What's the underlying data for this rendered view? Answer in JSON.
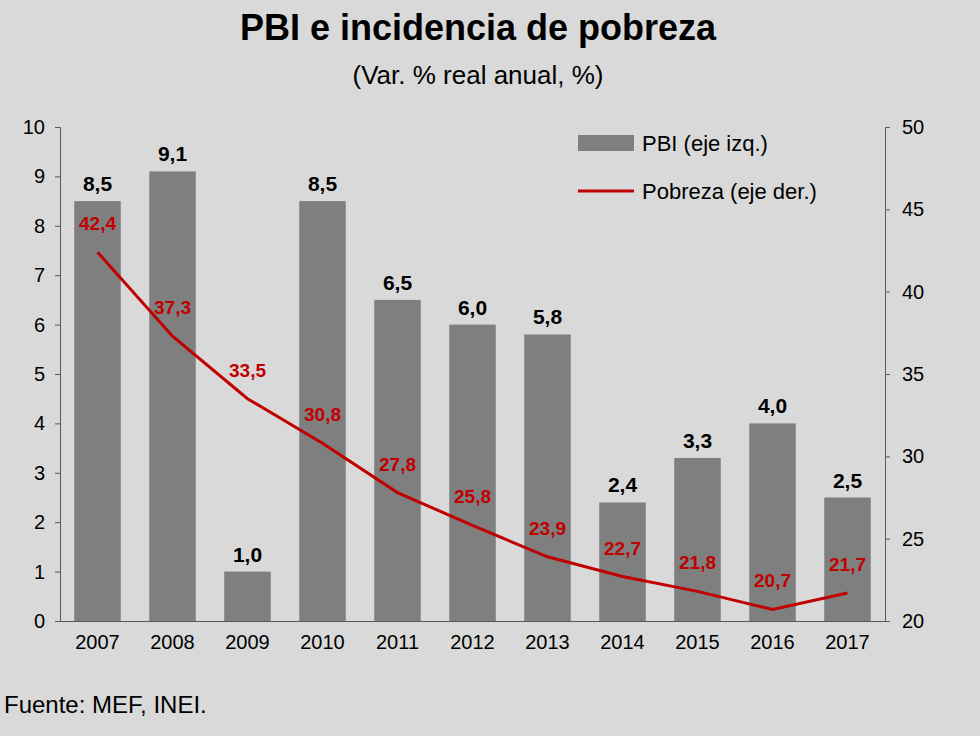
{
  "chart_data": {
    "type": "bar",
    "title": "PBI e incidencia de pobreza",
    "subtitle": "(Var. % real anual, %)",
    "source": "Fuente: MEF, INEI.",
    "categories": [
      "2007",
      "2008",
      "2009",
      "2010",
      "2011",
      "2012",
      "2013",
      "2014",
      "2015",
      "2016",
      "2017"
    ],
    "series": [
      {
        "name": "PBI (eje izq.)",
        "type": "bar",
        "color": "#7f7f7f",
        "values": [
          8.5,
          9.1,
          1.0,
          8.5,
          6.5,
          6.0,
          5.8,
          2.4,
          3.3,
          4.0,
          2.5
        ],
        "value_labels": [
          "8,5",
          "9,1",
          "1,0",
          "8,5",
          "6,5",
          "6,0",
          "5,8",
          "2,4",
          "3,3",
          "4,0",
          "2,5"
        ]
      },
      {
        "name": "Pobreza (eje der.)",
        "type": "line",
        "axis": "y2",
        "color": "#c00000",
        "values": [
          42.4,
          37.3,
          33.5,
          30.8,
          27.8,
          25.8,
          23.9,
          22.7,
          21.8,
          20.7,
          21.7
        ],
        "value_labels": [
          "42,4",
          "37,3",
          "33,5",
          "30,8",
          "27,8",
          "25,8",
          "23,9",
          "22,7",
          "21,8",
          "20,7",
          "21,7"
        ]
      }
    ],
    "ylim": [
      0,
      10
    ],
    "yticks": [
      0,
      1,
      2,
      3,
      4,
      5,
      6,
      7,
      8,
      9,
      10
    ],
    "y2lim": [
      20,
      50
    ],
    "y2ticks": [
      20,
      25,
      30,
      35,
      40,
      45,
      50
    ],
    "legend": "upper right",
    "data_labels": true,
    "grid": false
  }
}
